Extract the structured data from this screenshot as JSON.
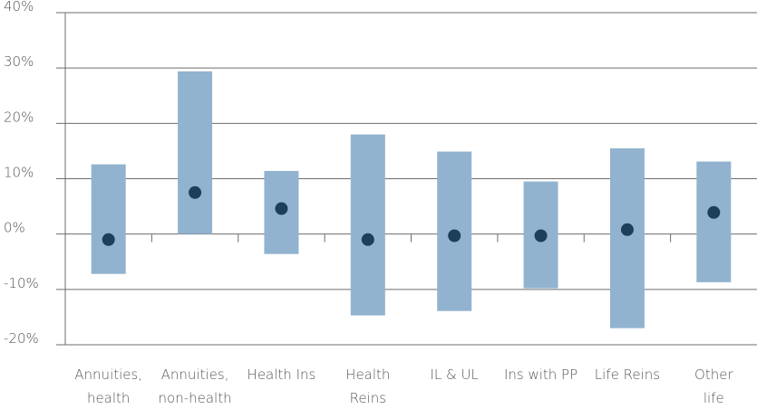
{
  "chart_data": {
    "type": "range",
    "categories": [
      [
        "Annuities,",
        "health"
      ],
      [
        "Annuities,",
        "non-health"
      ],
      [
        "Health Ins"
      ],
      [
        "Health",
        "Reins"
      ],
      [
        "IL & UL"
      ],
      [
        "Ins with PP"
      ],
      [
        "Life Reins"
      ],
      [
        "Other",
        "life"
      ]
    ],
    "low": [
      -7.2,
      0,
      -3.6,
      -14.7,
      -13.9,
      -9.8,
      -17.0,
      -8.7
    ],
    "high": [
      12.6,
      29.4,
      11.4,
      18.0,
      14.9,
      9.5,
      15.5,
      13.1
    ],
    "values": [
      -1.0,
      7.5,
      4.6,
      -1.0,
      -0.3,
      -0.3,
      0.8,
      3.9
    ],
    "bar_color": "#91b3cf",
    "point_color": "#1f3e5a",
    "ylim": [
      -20,
      40
    ],
    "yticks": [
      {
        "value": -20,
        "label": "-20%"
      },
      {
        "value": -10,
        "label": "-10%"
      },
      {
        "value": 0,
        "label": "0%"
      },
      {
        "value": 10,
        "label": "10%"
      },
      {
        "value": 20,
        "label": "20%"
      },
      {
        "value": 30,
        "label": "30%"
      },
      {
        "value": 40,
        "label": "40%"
      }
    ],
    "grid": true
  }
}
